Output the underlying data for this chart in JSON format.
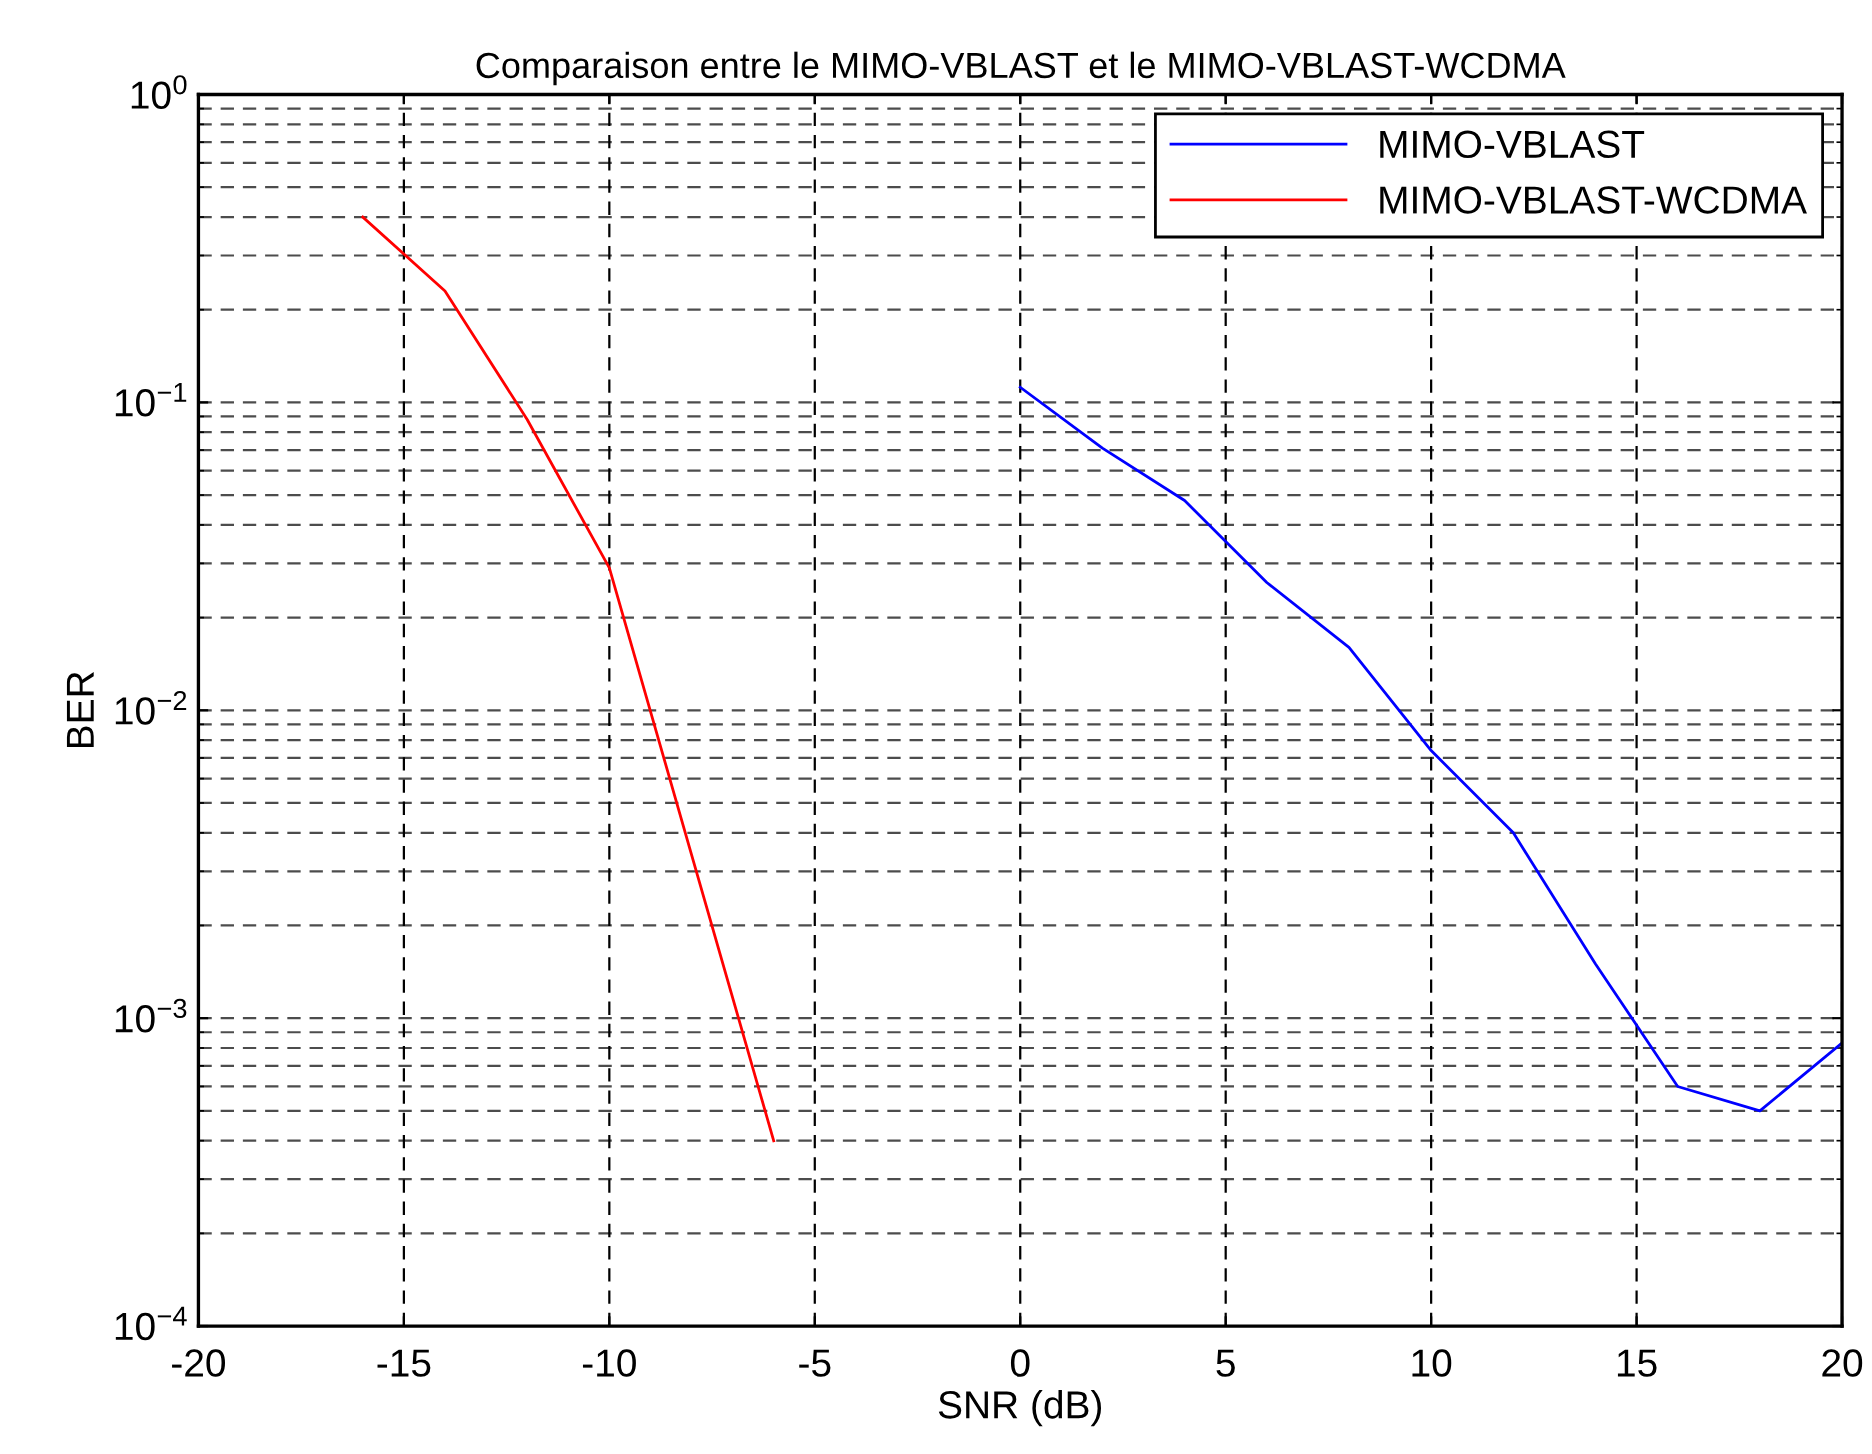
{
  "chart_data": {
    "type": "line",
    "title": "Comparaison entre le MIMO-VBLAST et le MIMO-VBLAST-WCDMA",
    "xlabel": "SNR (dB)",
    "ylabel": "BER",
    "series": [
      {
        "name": "MIMO-VBLAST",
        "color": "#0000ff",
        "x": [
          0,
          2,
          4,
          6,
          8,
          10,
          12,
          14,
          16,
          18,
          20
        ],
        "values": [
          0.112,
          0.071,
          0.048,
          0.026,
          0.016,
          0.0074,
          0.004,
          0.0015,
          0.0006,
          0.0005,
          0.00083
        ]
      },
      {
        "name": "MIMO-VBLAST-WCDMA",
        "color": "#ff0000",
        "x": [
          -16,
          -14,
          -12,
          -10,
          -8,
          -6
        ],
        "values": [
          0.4,
          0.23,
          0.088,
          0.029,
          0.0034,
          0.0004
        ]
      }
    ],
    "log": "y",
    "xlim": [
      -20,
      20
    ],
    "xticks": [
      -20,
      -15,
      -10,
      -5,
      0,
      5,
      10,
      15,
      20
    ],
    "ylim": [
      0.0001,
      1
    ],
    "yticks": [
      {
        "value": 0.0001,
        "label": "10$^{−4}$"
      },
      {
        "value": 0.001,
        "label": "10$^{−3}$"
      },
      {
        "value": 0.01,
        "label": "10$^{−2}$"
      },
      {
        "value": 0.1,
        "label": "10$^{−1}$"
      },
      {
        "value": 1,
        "label": "10$^{0}$"
      }
    ],
    "grid": true,
    "legend": "top right",
    "marker": "none"
  }
}
